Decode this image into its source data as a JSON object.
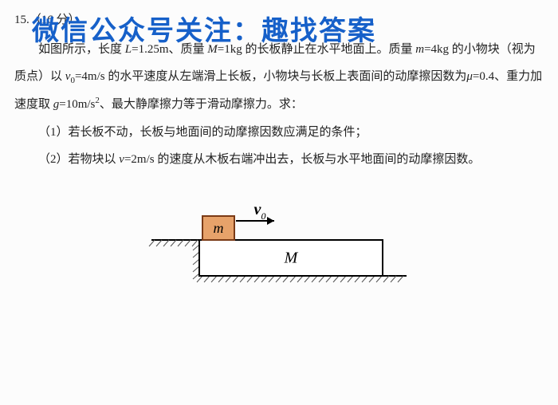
{
  "watermark": "微信公众号关注：趣找答案",
  "header": {
    "number": "15.",
    "points": "（16 分）"
  },
  "body": {
    "p1a": "如图所示，长度 ",
    "L": "L",
    "Lval": "=1.25m、质量 ",
    "M1": "M",
    "Mval": "=1kg 的长板静止在水平地面上。质量 ",
    "m": "m",
    "mval": "=4kg 的小物块（视为质点）以 ",
    "v0": "v",
    "v0sub": "0",
    "v0val": "=4m/s 的水平速度从左端滑上长板，小物块与长板上表面间的动摩擦因数为",
    "mu": "μ",
    "muval": "=0.4、重力加速度取 ",
    "g": "g",
    "gval": "=10m/s",
    "gexp": "2",
    "tail1": "、最大静摩擦力等于滑动摩擦力。求：",
    "q1": "（1）若长板不动，长板与地面间的动摩擦因数应满足的条件；",
    "q2a": "（2）若物块以 ",
    "v": "v",
    "vval": "=2m/s 的速度从木板右端冲出去，长板与水平地面间的动摩擦因数。"
  },
  "diagram": {
    "m_label": "m",
    "M_label": "M",
    "v_label": "v",
    "v_sub": "0",
    "colors": {
      "block_fill": "#e7a26a",
      "block_stroke": "#7a3a16",
      "arrow": "#000000",
      "line": "#000000",
      "hatch": "#555555"
    },
    "stroke_width": 2
  }
}
